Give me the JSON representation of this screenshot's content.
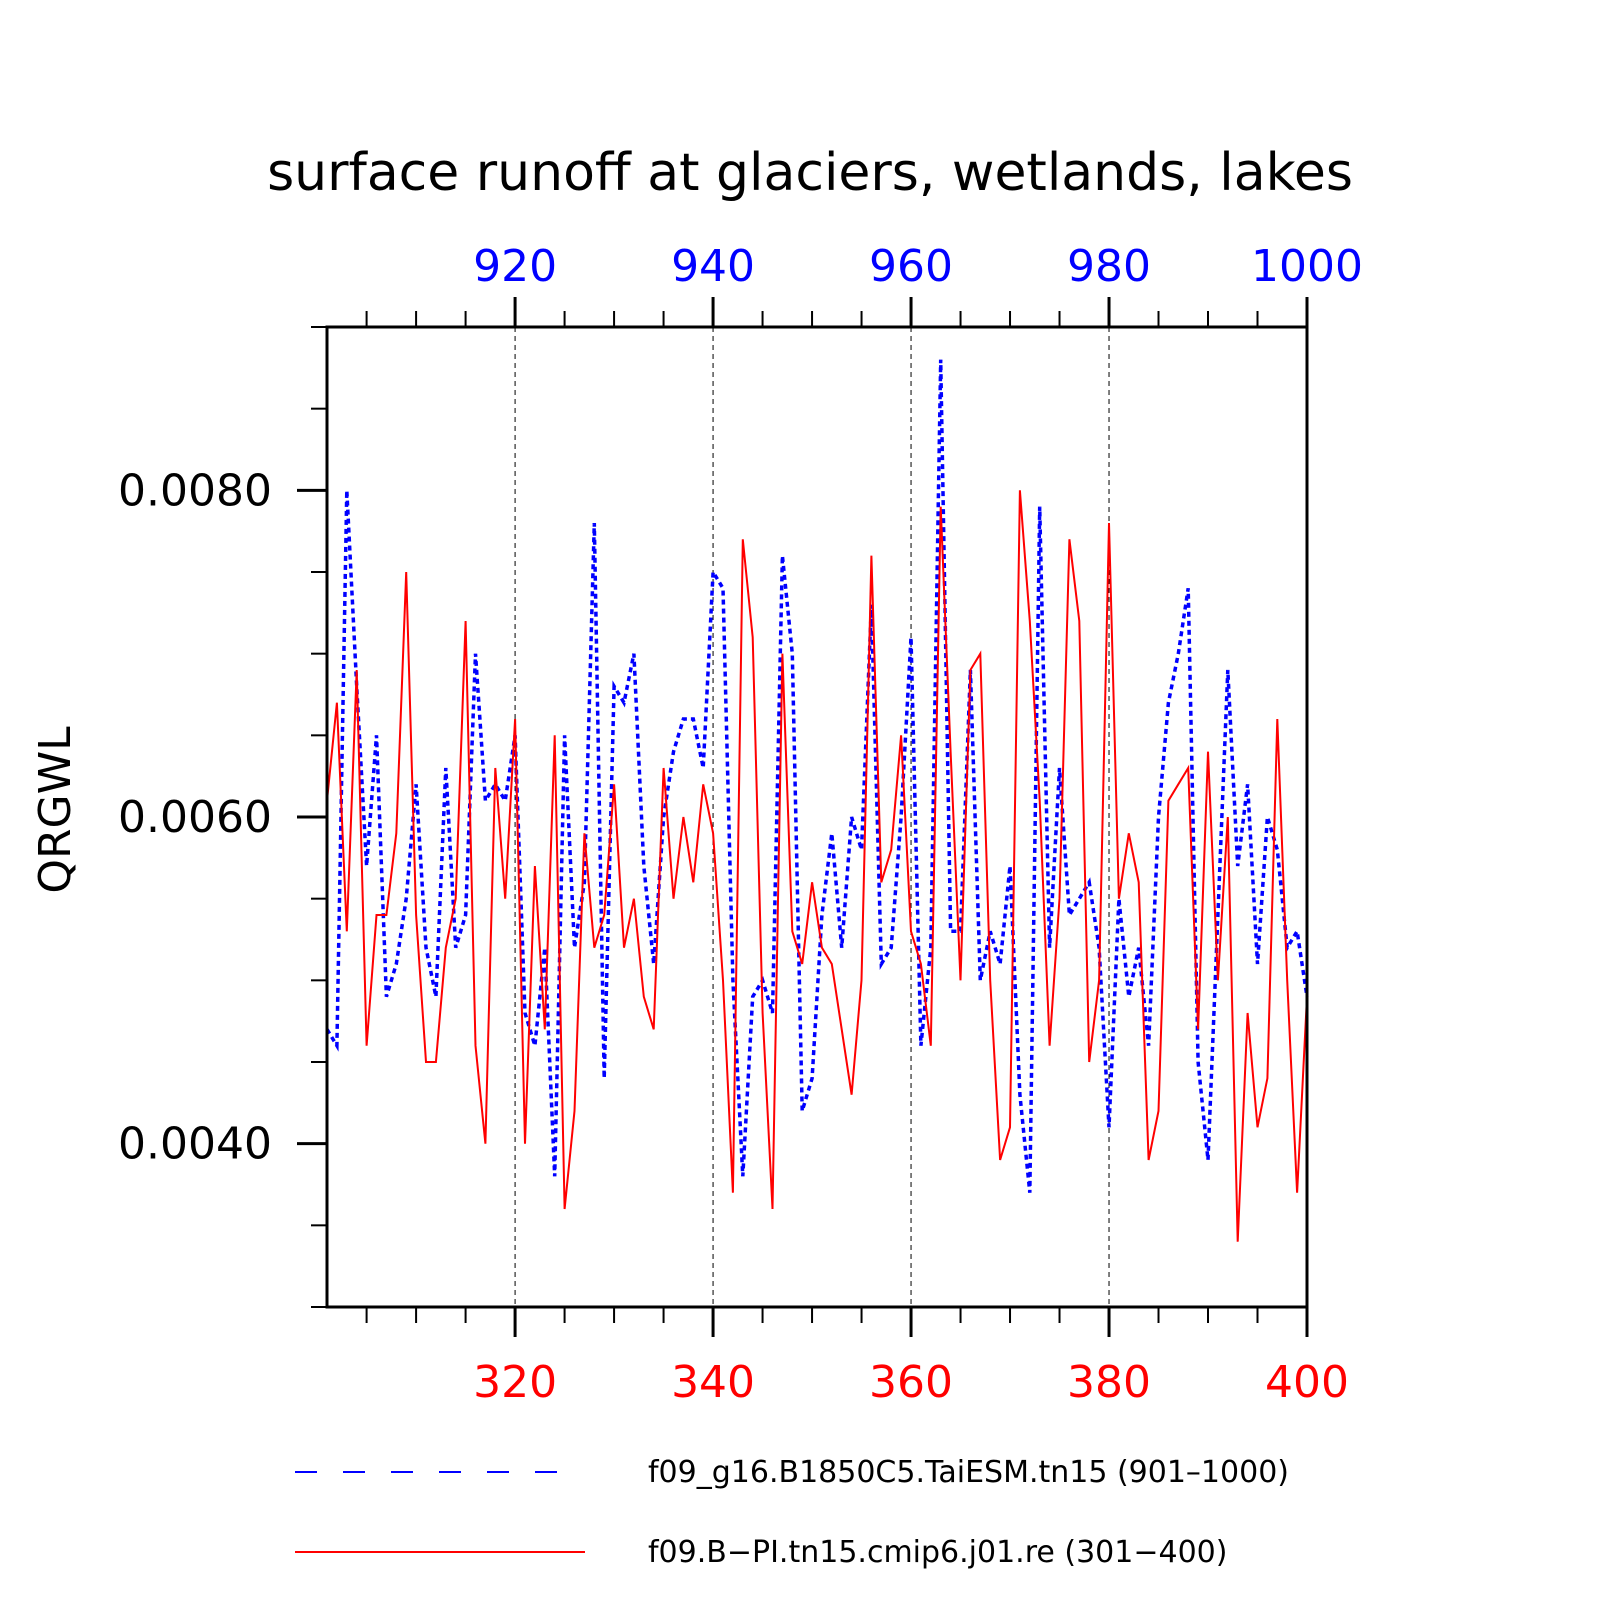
{
  "chart_data": {
    "type": "line",
    "title": "surface runoff at glaciers, wetlands, lakes",
    "ylabel": "QRGWL",
    "xlabel": "",
    "ylim": [
      0.003,
      0.009
    ],
    "y_ticks": [
      "0.0040",
      "0.0060",
      "0.0080"
    ],
    "x_bottom": {
      "range": [
        301,
        400
      ],
      "ticks": [
        "320",
        "340",
        "360",
        "380",
        "400"
      ],
      "color": "#ff0000"
    },
    "x_top": {
      "range": [
        901,
        1000
      ],
      "ticks": [
        "920",
        "940",
        "960",
        "980",
        "1000"
      ],
      "color": "#0000ff"
    },
    "grid": "vertical dashed at major ticks",
    "legend_position": "bottom",
    "series": [
      {
        "name": "f09_g16.B1850C5.TaiESM.tn15 (901–1000)",
        "axis": "top",
        "color": "#0000ff",
        "style": "dashed",
        "x_start": 901,
        "values": [
          0.0047,
          0.0046,
          0.008,
          0.0068,
          0.0057,
          0.0065,
          0.0049,
          0.0051,
          0.0055,
          0.0062,
          0.0052,
          0.0049,
          0.0063,
          0.0052,
          0.0054,
          0.007,
          0.0061,
          0.0062,
          0.0061,
          0.0065,
          0.0048,
          0.0046,
          0.0052,
          0.0038,
          0.0065,
          0.0052,
          0.0056,
          0.0078,
          0.0044,
          0.0068,
          0.0067,
          0.007,
          0.0057,
          0.0051,
          0.006,
          0.0064,
          0.0066,
          0.0066,
          0.0063,
          0.0075,
          0.0074,
          0.005,
          0.0038,
          0.0049,
          0.005,
          0.0048,
          0.0076,
          0.007,
          0.0042,
          0.0044,
          0.0054,
          0.0059,
          0.0052,
          0.006,
          0.0058,
          0.0073,
          0.0051,
          0.0052,
          0.006,
          0.0071,
          0.0046,
          0.0052,
          0.0088,
          0.0053,
          0.0053,
          0.0069,
          0.005,
          0.0053,
          0.0051,
          0.0057,
          0.0043,
          0.0037,
          0.0079,
          0.0052,
          0.0063,
          0.0054,
          0.0055,
          0.0056,
          0.0052,
          0.0041,
          0.0055,
          0.0049,
          0.0052,
          0.0046,
          0.006,
          0.0067,
          0.007,
          0.0074,
          0.0045,
          0.0039,
          0.0054,
          0.0069,
          0.0057,
          0.0062,
          0.0051,
          0.006,
          0.0058,
          0.0052,
          0.0053,
          0.0049
        ]
      },
      {
        "name": "f09.B−PI.tn15.cmip6.j01.re (301−400)",
        "axis": "bottom",
        "color": "#ff0000",
        "style": "solid",
        "x_start": 301,
        "values": [
          0.0061,
          0.0067,
          0.0053,
          0.0069,
          0.0046,
          0.0054,
          0.0054,
          0.0059,
          0.0075,
          0.0054,
          0.0045,
          0.0045,
          0.0052,
          0.0055,
          0.0072,
          0.0046,
          0.004,
          0.0063,
          0.0055,
          0.0066,
          0.004,
          0.0057,
          0.0047,
          0.0065,
          0.0036,
          0.0042,
          0.0059,
          0.0052,
          0.0054,
          0.0062,
          0.0052,
          0.0055,
          0.0049,
          0.0047,
          0.0063,
          0.0055,
          0.006,
          0.0056,
          0.0062,
          0.0059,
          0.005,
          0.0037,
          0.0077,
          0.0071,
          0.0048,
          0.0036,
          0.007,
          0.0053,
          0.0051,
          0.0056,
          0.0052,
          0.0051,
          0.0047,
          0.0043,
          0.005,
          0.0076,
          0.0056,
          0.0058,
          0.0065,
          0.0053,
          0.0051,
          0.0046,
          0.0079,
          0.0064,
          0.005,
          0.0069,
          0.007,
          0.005,
          0.0039,
          0.0041,
          0.008,
          0.0072,
          0.0061,
          0.0046,
          0.0055,
          0.0077,
          0.0072,
          0.0045,
          0.005,
          0.0078,
          0.0055,
          0.0059,
          0.0056,
          0.0039,
          0.0042,
          0.0061,
          0.0062,
          0.0063,
          0.0047,
          0.0064,
          0.005,
          0.006,
          0.0034,
          0.0048,
          0.0041,
          0.0044,
          0.0066,
          0.005,
          0.0037,
          0.0049
        ]
      }
    ]
  }
}
